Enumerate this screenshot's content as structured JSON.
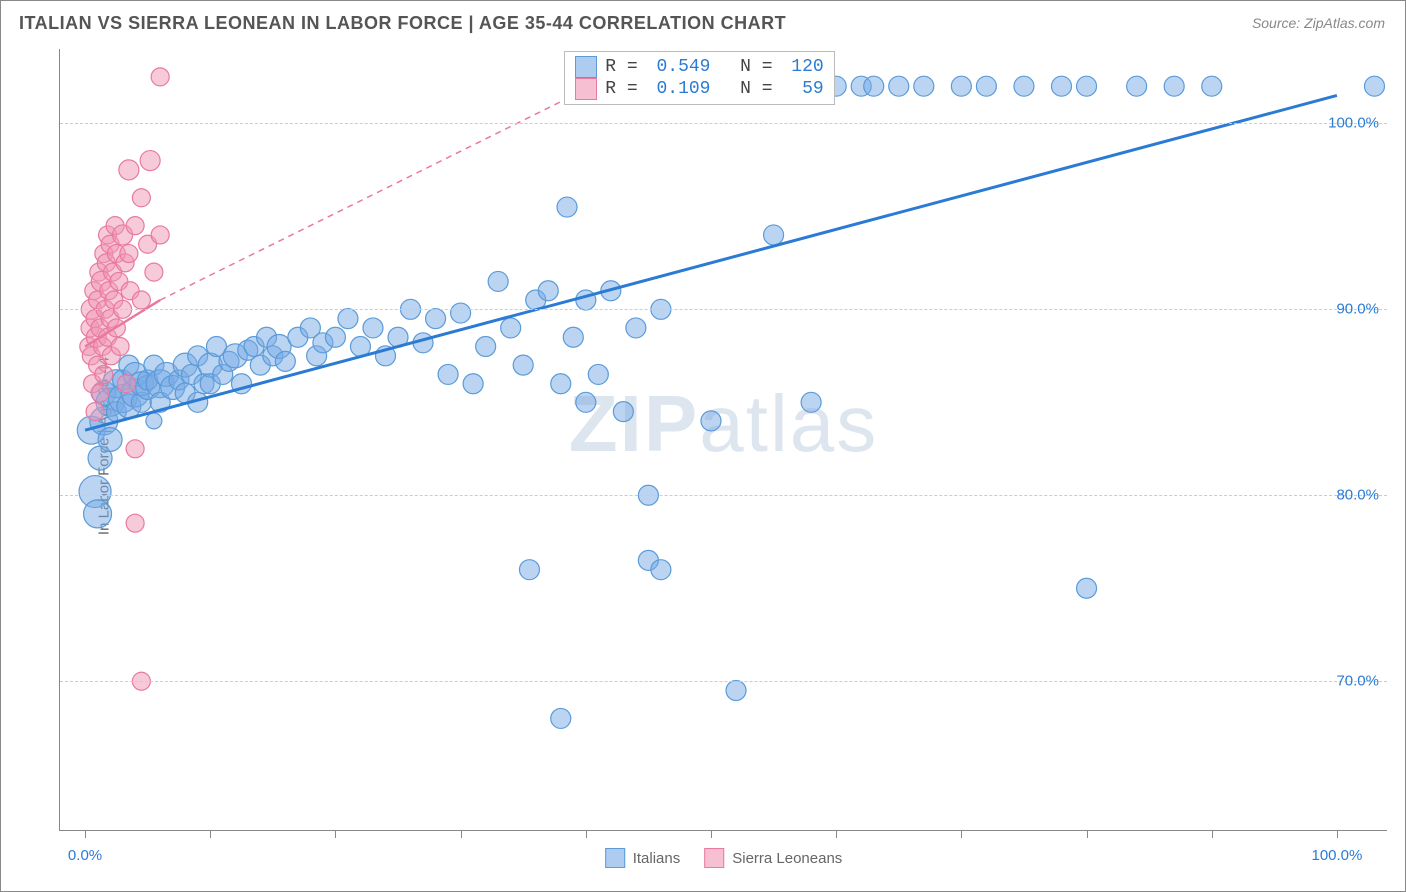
{
  "chart": {
    "type": "scatter",
    "title": "ITALIAN VS SIERRA LEONEAN IN LABOR FORCE | AGE 35-44 CORRELATION CHART",
    "source_label": "Source: ZipAtlas.com",
    "y_axis_title": "In Labor Force | Age 35-44",
    "watermark": "ZIPatlas",
    "background_color": "#ffffff",
    "grid_color": "#cccccc",
    "axis_color": "#888888",
    "title_fontsize": 18,
    "label_fontsize": 15,
    "x_range": [
      -2,
      104
    ],
    "y_range": [
      62,
      104
    ],
    "y_ticks": [
      70,
      80,
      90,
      100
    ],
    "y_tick_labels": [
      "70.0%",
      "80.0%",
      "90.0%",
      "100.0%"
    ],
    "y_tick_color": "#2b7bd4",
    "x_ticks": [
      0,
      10,
      20,
      30,
      40,
      50,
      60,
      70,
      80,
      90,
      100
    ],
    "x_tick_labels_shown": {
      "0": "0.0%",
      "100": "100.0%"
    },
    "x_tick_label_color": "#2b7bd4",
    "series": [
      {
        "name": "Italians",
        "marker_fill": "rgba(120,170,230,0.5)",
        "marker_stroke": "#5a9bd8",
        "marker_radius": 10,
        "trend_color": "#2b7bd4",
        "trend_width": 3,
        "trend_dash": "none",
        "trend_line": {
          "x1": 0,
          "y1": 83.5,
          "x2": 100,
          "y2": 101.5
        },
        "r": "0.549",
        "n": "120",
        "points": [
          [
            0.5,
            83.5,
            14
          ],
          [
            0.8,
            80.2,
            16
          ],
          [
            1.0,
            79.0,
            14
          ],
          [
            1.2,
            82.0,
            12
          ],
          [
            1.5,
            84.0,
            14
          ],
          [
            1.5,
            85.5,
            12
          ],
          [
            2.0,
            83.0,
            12
          ],
          [
            2.0,
            85.0,
            14
          ],
          [
            2.5,
            86.0,
            14
          ],
          [
            2.5,
            84.5,
            10
          ],
          [
            3.0,
            85.2,
            14
          ],
          [
            3.0,
            86.2,
            10
          ],
          [
            3.5,
            84.8,
            12
          ],
          [
            3.5,
            87.0,
            10
          ],
          [
            4.0,
            85.5,
            14
          ],
          [
            4.0,
            86.5,
            12
          ],
          [
            4.5,
            85.0,
            10
          ],
          [
            4.5,
            86.0,
            12
          ],
          [
            5.0,
            85.8,
            12
          ],
          [
            5.0,
            86.2,
            10
          ],
          [
            5.5,
            84.0,
            8
          ],
          [
            5.5,
            87.0,
            10
          ],
          [
            6.0,
            86.0,
            14
          ],
          [
            6.0,
            85.0,
            10
          ],
          [
            6.5,
            86.5,
            12
          ],
          [
            7.0,
            85.8,
            12
          ],
          [
            7.5,
            86.2,
            10
          ],
          [
            8.0,
            85.5,
            10
          ],
          [
            8.0,
            87.0,
            12
          ],
          [
            8.5,
            86.5,
            10
          ],
          [
            9.0,
            85.0,
            10
          ],
          [
            9.0,
            87.5,
            10
          ],
          [
            9.5,
            86.0,
            10
          ],
          [
            10.0,
            87.0,
            12
          ],
          [
            10.0,
            86.0,
            10
          ],
          [
            10.5,
            88.0,
            10
          ],
          [
            11.0,
            86.5,
            10
          ],
          [
            11.5,
            87.2,
            10
          ],
          [
            12.0,
            87.5,
            12
          ],
          [
            12.5,
            86.0,
            10
          ],
          [
            13.0,
            87.8,
            10
          ],
          [
            13.5,
            88.0,
            10
          ],
          [
            14.0,
            87.0,
            10
          ],
          [
            14.5,
            88.5,
            10
          ],
          [
            15.0,
            87.5,
            10
          ],
          [
            15.5,
            88.0,
            12
          ],
          [
            16.0,
            87.2,
            10
          ],
          [
            17.0,
            88.5,
            10
          ],
          [
            18.0,
            89.0,
            10
          ],
          [
            18.5,
            87.5,
            10
          ],
          [
            19.0,
            88.2,
            10
          ],
          [
            20.0,
            88.5,
            10
          ],
          [
            21.0,
            89.5,
            10
          ],
          [
            22.0,
            88.0,
            10
          ],
          [
            23.0,
            89.0,
            10
          ],
          [
            24.0,
            87.5,
            10
          ],
          [
            25.0,
            88.5,
            10
          ],
          [
            26.0,
            90.0,
            10
          ],
          [
            27.0,
            88.2,
            10
          ],
          [
            28.0,
            89.5,
            10
          ],
          [
            29.0,
            86.5,
            10
          ],
          [
            30.0,
            89.8,
            10
          ],
          [
            31.0,
            86.0,
            10
          ],
          [
            32.0,
            88.0,
            10
          ],
          [
            33.0,
            91.5,
            10
          ],
          [
            34.0,
            89.0,
            10
          ],
          [
            35.0,
            87.0,
            10
          ],
          [
            36.0,
            90.5,
            10
          ],
          [
            37.0,
            91.0,
            10
          ],
          [
            38.0,
            86.0,
            10
          ],
          [
            38.5,
            95.5,
            10
          ],
          [
            39.0,
            88.5,
            10
          ],
          [
            40.0,
            85.0,
            10
          ],
          [
            40.0,
            90.5,
            10
          ],
          [
            41.0,
            86.5,
            10
          ],
          [
            42.0,
            91.0,
            10
          ],
          [
            43.0,
            84.5,
            10
          ],
          [
            44.0,
            89.0,
            10
          ],
          [
            45.0,
            80.0,
            10
          ],
          [
            46.0,
            90.0,
            10
          ],
          [
            35.5,
            76.0,
            10
          ],
          [
            38.0,
            68.0,
            10
          ],
          [
            45.0,
            76.5,
            10
          ],
          [
            46.0,
            76.0,
            10
          ],
          [
            50.0,
            84.0,
            10
          ],
          [
            52.0,
            69.5,
            10
          ],
          [
            55.0,
            94.0,
            10
          ],
          [
            58.0,
            85.0,
            10
          ],
          [
            56.0,
            102.0,
            10
          ],
          [
            58.0,
            102.0,
            10
          ],
          [
            60.0,
            102.0,
            10
          ],
          [
            62.0,
            102.0,
            10
          ],
          [
            63.0,
            102.0,
            10
          ],
          [
            65.0,
            102.0,
            10
          ],
          [
            67.0,
            102.0,
            10
          ],
          [
            70.0,
            102.0,
            10
          ],
          [
            72.0,
            102.0,
            10
          ],
          [
            75.0,
            102.0,
            10
          ],
          [
            78.0,
            102.0,
            10
          ],
          [
            80.0,
            102.0,
            10
          ],
          [
            84.0,
            102.0,
            10
          ],
          [
            87.0,
            102.0,
            10
          ],
          [
            90.0,
            102.0,
            10
          ],
          [
            103.0,
            102.0,
            10
          ],
          [
            80.0,
            75.0,
            10
          ]
        ]
      },
      {
        "name": "Sierra Leoneans",
        "marker_fill": "rgba(240,150,180,0.5)",
        "marker_stroke": "#e87aa0",
        "marker_radius": 9,
        "trend_color": "#e87aa0",
        "trend_width": 2.5,
        "trend_dash": "6,5",
        "trend_line_solid": {
          "x1": 0,
          "y1": 88.0,
          "x2": 6,
          "y2": 90.5
        },
        "trend_line_dashed": {
          "x1": 6,
          "y1": 90.5,
          "x2": 42,
          "y2": 102.5
        },
        "r": "0.109",
        "n": "59",
        "points": [
          [
            0.3,
            88.0,
            9
          ],
          [
            0.4,
            89.0,
            9
          ],
          [
            0.5,
            90.0,
            10
          ],
          [
            0.5,
            87.5,
            9
          ],
          [
            0.6,
            86.0,
            9
          ],
          [
            0.7,
            91.0,
            9
          ],
          [
            0.8,
            89.5,
            9
          ],
          [
            0.8,
            84.5,
            9
          ],
          [
            0.9,
            88.5,
            10
          ],
          [
            1.0,
            90.5,
            9
          ],
          [
            1.0,
            87.0,
            9
          ],
          [
            1.1,
            92.0,
            9
          ],
          [
            1.2,
            89.0,
            9
          ],
          [
            1.2,
            85.5,
            9
          ],
          [
            1.3,
            91.5,
            10
          ],
          [
            1.4,
            88.0,
            9
          ],
          [
            1.5,
            93.0,
            9
          ],
          [
            1.5,
            86.5,
            9
          ],
          [
            1.6,
            90.0,
            9
          ],
          [
            1.7,
            92.5,
            9
          ],
          [
            1.8,
            88.5,
            9
          ],
          [
            1.8,
            94.0,
            9
          ],
          [
            1.9,
            91.0,
            9
          ],
          [
            2.0,
            89.5,
            9
          ],
          [
            2.0,
            93.5,
            9
          ],
          [
            2.1,
            87.5,
            9
          ],
          [
            2.2,
            92.0,
            9
          ],
          [
            2.3,
            90.5,
            9
          ],
          [
            2.4,
            94.5,
            9
          ],
          [
            2.5,
            89.0,
            9
          ],
          [
            2.5,
            93.0,
            9
          ],
          [
            2.7,
            91.5,
            9
          ],
          [
            2.8,
            88.0,
            9
          ],
          [
            3.0,
            94.0,
            10
          ],
          [
            3.0,
            90.0,
            9
          ],
          [
            3.2,
            92.5,
            9
          ],
          [
            3.3,
            86.0,
            9
          ],
          [
            3.5,
            93.0,
            9
          ],
          [
            3.5,
            97.5,
            10
          ],
          [
            3.6,
            91.0,
            9
          ],
          [
            4.0,
            94.5,
            9
          ],
          [
            4.0,
            82.5,
            9
          ],
          [
            4.5,
            90.5,
            9
          ],
          [
            4.5,
            96.0,
            9
          ],
          [
            5.0,
            93.5,
            9
          ],
          [
            5.2,
            98.0,
            10
          ],
          [
            5.5,
            92.0,
            9
          ],
          [
            6.0,
            94.0,
            9
          ],
          [
            6.0,
            102.5,
            9
          ],
          [
            4.0,
            78.5,
            9
          ],
          [
            4.5,
            70.0,
            9
          ]
        ]
      }
    ],
    "legend": {
      "position": "bottom-center",
      "items": [
        {
          "label": "Italians",
          "fill": "rgba(120,170,230,0.6)",
          "stroke": "#5a9bd8"
        },
        {
          "label": "Sierra Leoneans",
          "fill": "rgba(240,150,180,0.6)",
          "stroke": "#e87aa0"
        }
      ]
    },
    "stats_box": {
      "rows": [
        {
          "swatch_fill": "rgba(120,170,230,0.6)",
          "swatch_stroke": "#5a9bd8",
          "r": "0.549",
          "n": "120"
        },
        {
          "swatch_fill": "rgba(240,150,180,0.6)",
          "swatch_stroke": "#e87aa0",
          "r": "0.109",
          "n": " 59"
        }
      ]
    }
  }
}
